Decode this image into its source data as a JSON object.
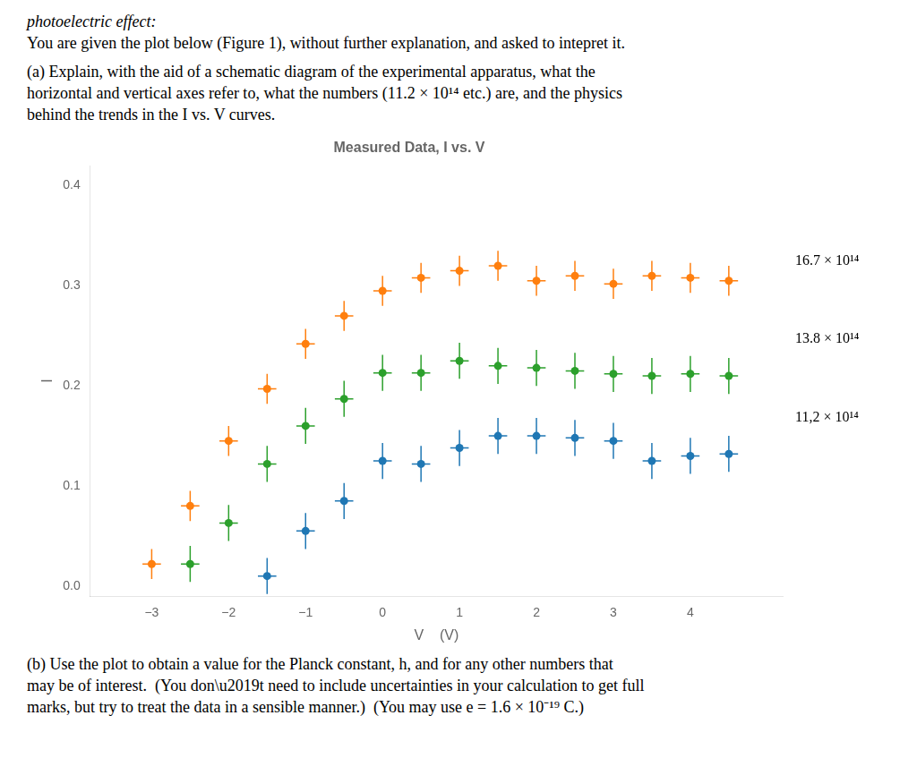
{
  "chart_data": {
    "type": "scatter",
    "header_text": [
      "photoelectric effect:",
      "You are given the plot below (Figure 1), without further explanation, and asked to intepret it.",
      "(a) Explain, with the aid of a schematic diagram of the experimental apparatus, what the",
      "horizontal and vertical axes refer to, what the numbers (11.2 × 10¹⁴ etc.) are, and the physics",
      "behind the trends in the I vs. V curves."
    ],
    "title": "Measured Data, I vs. V",
    "xlabel": "V    (V)",
    "ylabel": "I",
    "xlim": [
      -3.8,
      5.2
    ],
    "ylim": [
      -0.01,
      0.42
    ],
    "xticks": [
      {
        "value": -3,
        "label": "−3"
      },
      {
        "value": -2,
        "label": "−2"
      },
      {
        "value": -1,
        "label": "−1"
      },
      0,
      1,
      2,
      3,
      4
    ],
    "yticks": [
      {
        "value": 0.0,
        "label": "0.0"
      },
      0.1,
      0.2,
      0.3,
      0.4
    ],
    "grid": false,
    "series": [
      {
        "color": "#ff7f0e",
        "x": [
          -3.0,
          -2.5,
          -2.0,
          -1.5,
          -1.0,
          -0.5,
          0.0,
          0.5,
          1.0,
          1.5,
          2.0,
          2.5,
          3.0,
          3.5,
          4.0,
          4.5
        ],
        "values": [
          0.022,
          0.08,
          0.145,
          0.197,
          0.242,
          0.27,
          0.295,
          0.308,
          0.315,
          0.32,
          0.305,
          0.31,
          0.302,
          0.31,
          0.308,
          0.305
        ],
        "xerr": 0.12,
        "yerr": 0.015
      },
      {
        "color": "#2ca02c",
        "x": [
          -2.5,
          -2.0,
          -1.5,
          -1.0,
          -0.5,
          0.0,
          0.5,
          1.0,
          1.5,
          2.0,
          2.5,
          3.0,
          3.5,
          4.0,
          4.5
        ],
        "values": [
          0.022,
          0.063,
          0.122,
          0.16,
          0.187,
          0.213,
          0.213,
          0.225,
          0.22,
          0.218,
          0.215,
          0.212,
          0.21,
          0.212,
          0.21
        ],
        "xerr": 0.12,
        "yerr": 0.018
      },
      {
        "color": "#1f77b4",
        "x": [
          -1.5,
          -1.0,
          -0.5,
          0.0,
          0.5,
          1.0,
          1.5,
          2.0,
          2.5,
          3.0,
          3.5,
          4.0,
          4.5
        ],
        "values": [
          0.01,
          0.055,
          0.085,
          0.125,
          0.122,
          0.138,
          0.15,
          0.15,
          0.148,
          0.145,
          0.125,
          0.13,
          0.132
        ],
        "xerr": 0.12,
        "yerr": 0.018
      }
    ],
    "annotations": [
      {
        "text": "16.7 × 10¹⁴",
        "y": 0.325
      },
      {
        "text": "13.8 × 10¹⁴",
        "y": 0.247
      },
      {
        "text": "11,2 × 10¹⁴",
        "y": 0.168
      }
    ],
    "footer_text": [
      "(b) Use the plot to obtain a value for the Planck constant, h, and for any other numbers that",
      "may be of interest.  (You don\\u2019t need to include uncertainties in your calculation to get full",
      "marks, but try to treat the data in a sensible manner.)  (You may use e = 1.6 × 10⁻¹⁹ C.)"
    ]
  }
}
